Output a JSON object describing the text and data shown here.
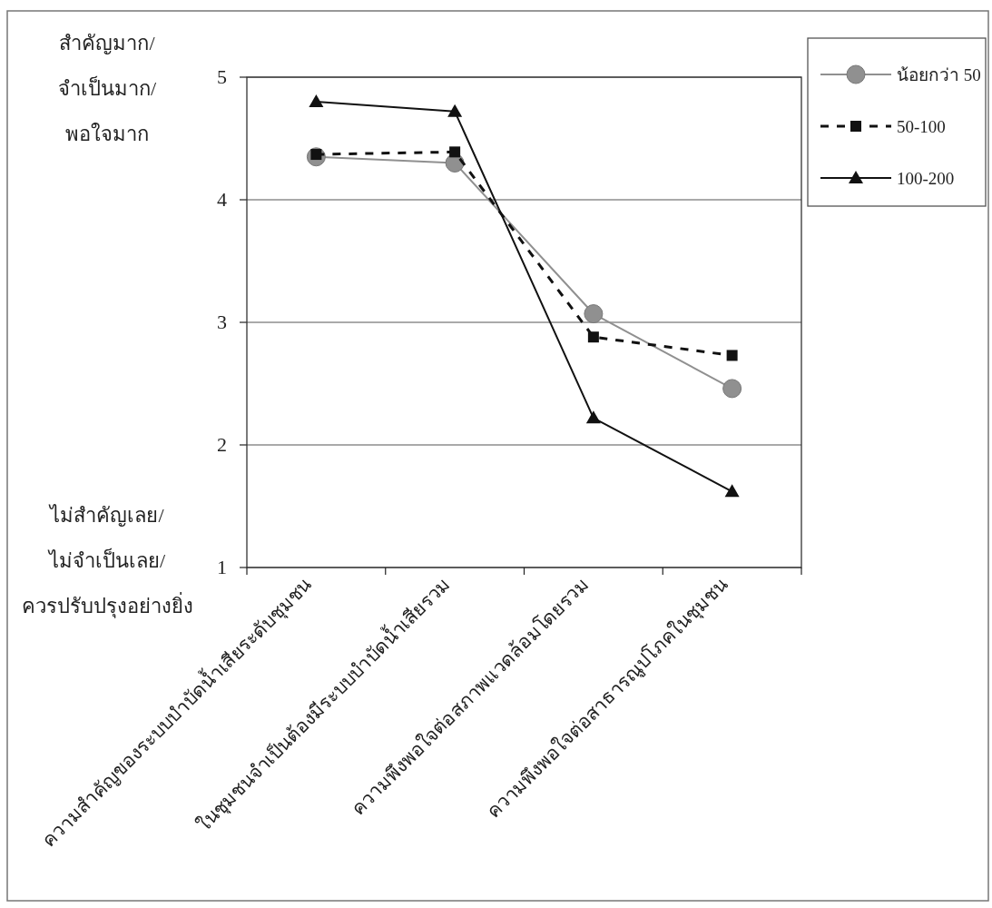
{
  "chart_data": {
    "type": "line",
    "categories": [
      "ความสำคัญของระบบบำบัดน้ำเสียระดับชุมชน",
      "ในชุมชนจำเป็นต้องมีระบบบำบัดน้ำเสียรวม",
      "ความพึงพอใจต่อสภาพแวดล้อมโดยรวม",
      "ความพึงพอใจต่อสาธารณูปโภคในชุมชน"
    ],
    "series": [
      {
        "name": "น้อยกว่า 50",
        "color": "#909090",
        "marker": "circle",
        "line_style": "solid",
        "values": [
          4.35,
          4.3,
          3.07,
          2.46
        ]
      },
      {
        "name": "50-100",
        "color": "#111111",
        "marker": "square",
        "line_style": "dashed",
        "values": [
          4.37,
          4.39,
          2.88,
          2.73
        ]
      },
      {
        "name": "100-200",
        "color": "#111111",
        "marker": "triangle",
        "line_style": "solid",
        "values": [
          4.8,
          4.72,
          2.22,
          1.62
        ]
      }
    ],
    "ylim": [
      1,
      5
    ],
    "yticks": [
      1,
      2,
      3,
      4,
      5
    ],
    "grid": "y",
    "legend": "top right",
    "annotations": [
      "สำคัญมาก/\nจำเป็นมาก/\nพอใจมาก",
      "ไม่สำคัญเลย/\nไม่จำเป็นเลย/\nควรปรับปรุงอย่างยิ่ง"
    ]
  }
}
